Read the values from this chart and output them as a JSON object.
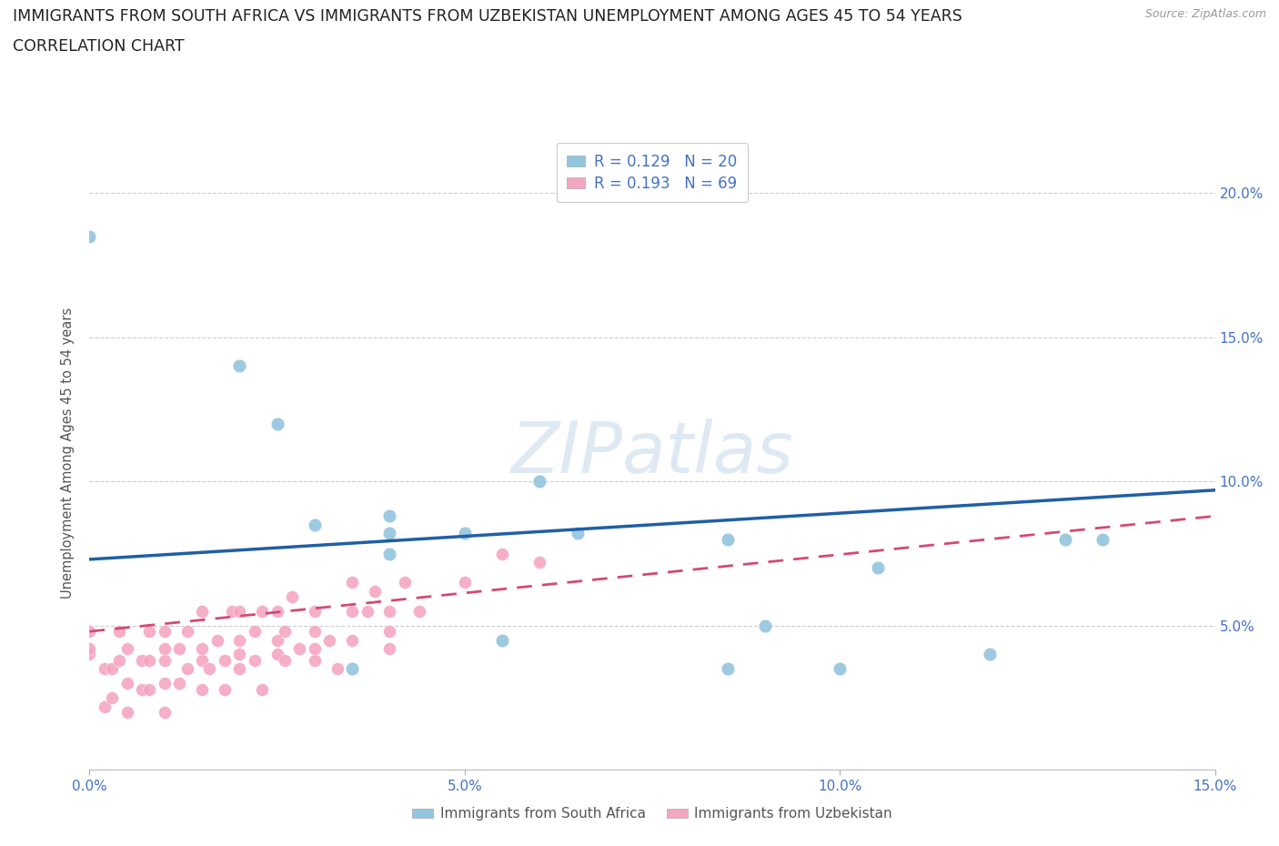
{
  "title_line1": "IMMIGRANTS FROM SOUTH AFRICA VS IMMIGRANTS FROM UZBEKISTAN UNEMPLOYMENT AMONG AGES 45 TO 54 YEARS",
  "title_line2": "CORRELATION CHART",
  "source": "Source: ZipAtlas.com",
  "ylabel": "Unemployment Among Ages 45 to 54 years",
  "xlim": [
    0,
    0.15
  ],
  "ylim": [
    0,
    0.22
  ],
  "xticks": [
    0.0,
    0.05,
    0.1,
    0.15
  ],
  "yticks": [
    0.05,
    0.1,
    0.15,
    0.2
  ],
  "R_south_africa": 0.129,
  "N_south_africa": 20,
  "R_uzbekistan": 0.193,
  "N_uzbekistan": 69,
  "color_south_africa": "#92c5de",
  "color_uzbekistan": "#f4a6c0",
  "line_color_south_africa": "#1f5fa6",
  "line_color_uzbekistan": "#d44a72",
  "watermark": "ZIPatlas",
  "south_africa_x": [
    0.0,
    0.02,
    0.025,
    0.03,
    0.035,
    0.04,
    0.04,
    0.04,
    0.05,
    0.055,
    0.06,
    0.065,
    0.085,
    0.085,
    0.09,
    0.1,
    0.105,
    0.12,
    0.13,
    0.135
  ],
  "south_africa_y": [
    0.185,
    0.14,
    0.12,
    0.085,
    0.035,
    0.075,
    0.082,
    0.088,
    0.082,
    0.045,
    0.1,
    0.082,
    0.08,
    0.035,
    0.05,
    0.035,
    0.07,
    0.04,
    0.08,
    0.08
  ],
  "uzbekistan_x": [
    0.0,
    0.0,
    0.0,
    0.002,
    0.002,
    0.003,
    0.003,
    0.004,
    0.004,
    0.005,
    0.005,
    0.005,
    0.007,
    0.007,
    0.008,
    0.008,
    0.008,
    0.01,
    0.01,
    0.01,
    0.01,
    0.01,
    0.012,
    0.012,
    0.013,
    0.013,
    0.015,
    0.015,
    0.015,
    0.015,
    0.016,
    0.017,
    0.018,
    0.018,
    0.019,
    0.02,
    0.02,
    0.02,
    0.02,
    0.022,
    0.022,
    0.023,
    0.023,
    0.025,
    0.025,
    0.025,
    0.026,
    0.026,
    0.027,
    0.028,
    0.03,
    0.03,
    0.03,
    0.03,
    0.032,
    0.033,
    0.035,
    0.035,
    0.035,
    0.037,
    0.038,
    0.04,
    0.04,
    0.04,
    0.042,
    0.044,
    0.05,
    0.055,
    0.06
  ],
  "uzbekistan_y": [
    0.04,
    0.042,
    0.048,
    0.022,
    0.035,
    0.025,
    0.035,
    0.038,
    0.048,
    0.02,
    0.03,
    0.042,
    0.028,
    0.038,
    0.028,
    0.038,
    0.048,
    0.02,
    0.03,
    0.038,
    0.042,
    0.048,
    0.03,
    0.042,
    0.035,
    0.048,
    0.028,
    0.038,
    0.042,
    0.055,
    0.035,
    0.045,
    0.028,
    0.038,
    0.055,
    0.035,
    0.04,
    0.045,
    0.055,
    0.038,
    0.048,
    0.028,
    0.055,
    0.04,
    0.045,
    0.055,
    0.038,
    0.048,
    0.06,
    0.042,
    0.038,
    0.042,
    0.048,
    0.055,
    0.045,
    0.035,
    0.045,
    0.055,
    0.065,
    0.055,
    0.062,
    0.042,
    0.048,
    0.055,
    0.065,
    0.055,
    0.065,
    0.075,
    0.072
  ],
  "line_sa_x0": 0.0,
  "line_sa_x1": 0.15,
  "line_sa_y0": 0.073,
  "line_sa_y1": 0.097,
  "line_uz_x0": 0.0,
  "line_uz_x1": 0.15,
  "line_uz_y0": 0.048,
  "line_uz_y1": 0.088
}
